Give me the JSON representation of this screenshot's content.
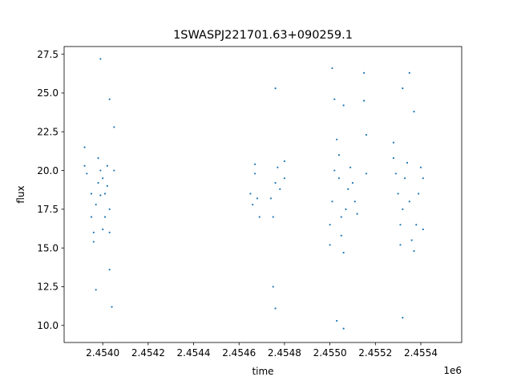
{
  "chart_data": {
    "type": "scatter",
    "title": "1SWASPJ221701.63+090259.1",
    "xlabel": "time",
    "ylabel": "flux",
    "x_offset_label": "1e6",
    "xlim": [
      2.45383,
      2.45558
    ],
    "ylim": [
      8.9,
      28.0
    ],
    "x_ticks": [
      2.454,
      2.4542,
      2.4544,
      2.4546,
      2.4548,
      2.455,
      2.4552,
      2.4554
    ],
    "x_tick_labels": [
      "2.4540",
      "2.4542",
      "2.4544",
      "2.4546",
      "2.4548",
      "2.4550",
      "2.4552",
      "2.4554"
    ],
    "y_ticks": [
      10.0,
      12.5,
      15.0,
      17.5,
      20.0,
      22.5,
      25.0,
      27.5
    ],
    "y_tick_labels": [
      "10.0",
      "12.5",
      "15.0",
      "17.5",
      "20.0",
      "22.5",
      "25.0",
      "27.5"
    ],
    "grid": false,
    "marker_color": "#1f77b4",
    "series": [
      {
        "points": [
          [
            2.45392,
            20.3
          ],
          [
            2.45392,
            21.5
          ],
          [
            2.45393,
            19.8
          ],
          [
            2.45395,
            18.5
          ],
          [
            2.45395,
            17.0
          ],
          [
            2.45396,
            16.0
          ],
          [
            2.45396,
            15.4
          ],
          [
            2.45397,
            17.8
          ],
          [
            2.45397,
            12.3
          ],
          [
            2.45398,
            19.2
          ],
          [
            2.45398,
            20.8
          ],
          [
            2.45399,
            20.0
          ],
          [
            2.45399,
            18.4
          ],
          [
            2.45399,
            27.2
          ],
          [
            2.454,
            19.5
          ],
          [
            2.454,
            16.2
          ],
          [
            2.45401,
            17.0
          ],
          [
            2.45401,
            18.5
          ],
          [
            2.45402,
            20.3
          ],
          [
            2.45402,
            19.0
          ],
          [
            2.45403,
            17.5
          ],
          [
            2.45403,
            16.0
          ],
          [
            2.45403,
            24.6
          ],
          [
            2.45403,
            13.6
          ],
          [
            2.45404,
            11.2
          ],
          [
            2.45405,
            20.0
          ],
          [
            2.45405,
            22.8
          ],
          [
            2.45465,
            18.5
          ],
          [
            2.45466,
            17.8
          ],
          [
            2.45467,
            19.8
          ],
          [
            2.45467,
            20.4
          ],
          [
            2.45468,
            18.2
          ],
          [
            2.45469,
            17.0
          ],
          [
            2.45474,
            18.2
          ],
          [
            2.45475,
            17.0
          ],
          [
            2.45475,
            12.5
          ],
          [
            2.45476,
            19.2
          ],
          [
            2.45476,
            25.3
          ],
          [
            2.45476,
            11.1
          ],
          [
            2.45477,
            20.2
          ],
          [
            2.45478,
            18.8
          ],
          [
            2.4548,
            19.5
          ],
          [
            2.4548,
            20.6
          ],
          [
            2.455,
            16.5
          ],
          [
            2.455,
            15.2
          ],
          [
            2.45501,
            18.0
          ],
          [
            2.45501,
            26.6
          ],
          [
            2.45502,
            20.0
          ],
          [
            2.45502,
            24.6
          ],
          [
            2.45503,
            22.0
          ],
          [
            2.45503,
            10.3
          ],
          [
            2.45504,
            21.0
          ],
          [
            2.45504,
            19.5
          ],
          [
            2.45505,
            17.0
          ],
          [
            2.45505,
            15.8
          ],
          [
            2.45506,
            14.7
          ],
          [
            2.45506,
            9.8
          ],
          [
            2.45506,
            24.2
          ],
          [
            2.45507,
            17.5
          ],
          [
            2.45508,
            18.8
          ],
          [
            2.45509,
            20.2
          ],
          [
            2.4551,
            19.2
          ],
          [
            2.45511,
            18.0
          ],
          [
            2.45512,
            17.2
          ],
          [
            2.45515,
            26.3
          ],
          [
            2.45515,
            24.5
          ],
          [
            2.45516,
            22.3
          ],
          [
            2.45516,
            19.8
          ],
          [
            2.45528,
            21.8
          ],
          [
            2.45528,
            20.8
          ],
          [
            2.45529,
            19.8
          ],
          [
            2.4553,
            18.5
          ],
          [
            2.45531,
            16.5
          ],
          [
            2.45531,
            15.2
          ],
          [
            2.45532,
            17.5
          ],
          [
            2.45532,
            25.3
          ],
          [
            2.45532,
            10.5
          ],
          [
            2.45533,
            19.5
          ],
          [
            2.45534,
            20.5
          ],
          [
            2.45535,
            18.0
          ],
          [
            2.45535,
            26.3
          ],
          [
            2.45536,
            15.5
          ],
          [
            2.45537,
            14.8
          ],
          [
            2.45537,
            23.8
          ],
          [
            2.45538,
            16.5
          ],
          [
            2.45539,
            18.5
          ],
          [
            2.4554,
            20.2
          ],
          [
            2.45541,
            19.5
          ],
          [
            2.45541,
            16.2
          ]
        ]
      }
    ]
  }
}
